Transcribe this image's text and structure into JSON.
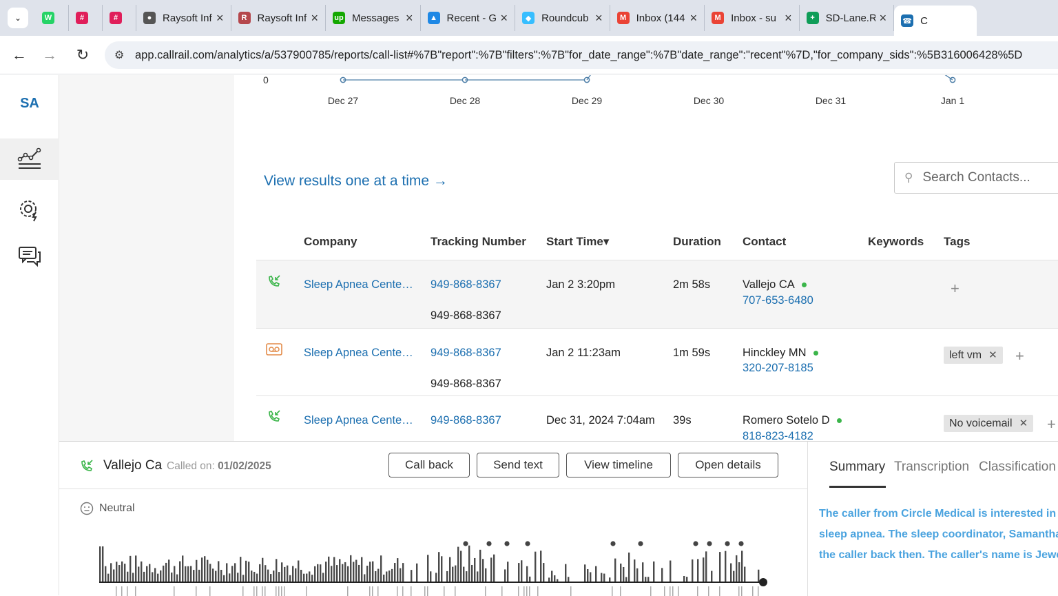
{
  "browser": {
    "tabs": [
      {
        "label": "",
        "icon": "whatsapp-icon",
        "color": "#25d366"
      },
      {
        "label": "",
        "icon": "slack-icon",
        "color": "#e01e5a"
      },
      {
        "label": "",
        "icon": "slack-icon",
        "color": "#e01e5a"
      },
      {
        "label": "Raysoft Inf",
        "icon": "globe-icon",
        "color": "#555555"
      },
      {
        "label": "Raysoft Inf",
        "icon": "raysoft-icon",
        "color": "#b5474c"
      },
      {
        "label": "Messages",
        "icon": "upwork-icon",
        "color": "#14a800"
      },
      {
        "label": "Recent - G",
        "icon": "drive-icon",
        "color": "#1e88e5"
      },
      {
        "label": "Roundcub",
        "icon": "roundcube-icon",
        "color": "#37beff"
      },
      {
        "label": "Inbox (144",
        "icon": "gmail-icon",
        "color": "#ea4335"
      },
      {
        "label": "Inbox - su",
        "icon": "gmail-icon",
        "color": "#ea4335"
      },
      {
        "label": "SD-Lane.R",
        "icon": "sheets-icon",
        "color": "#0f9d58"
      },
      {
        "label": "C",
        "icon": "callrail-icon",
        "color": "#1c6fb0"
      }
    ],
    "url": "app.callrail.com/analytics/a/537900785/reports/call-list#%7B\"report\":%7B\"filters\":%7B\"for_date_range\":%7B\"date_range\":\"recent\"%7D,\"for_company_sids\":%5B316006428%5D"
  },
  "sidebar": {
    "logo": "SA"
  },
  "chart_data": {
    "type": "line",
    "y_tick": "0",
    "categories": [
      "Dec 27",
      "Dec 28",
      "Dec 29",
      "Dec 30",
      "Dec 31",
      "Jan 1"
    ],
    "values": [
      0,
      0,
      0,
      null,
      null,
      0
    ]
  },
  "main": {
    "view_results": "View results one at a time →",
    "search_placeholder": "Search Contacts..."
  },
  "table": {
    "headers": {
      "company": "Company",
      "tracking": "Tracking Number",
      "start": "Start Time▾",
      "duration": "Duration",
      "contact": "Contact",
      "keywords": "Keywords",
      "tags": "Tags"
    },
    "rows": [
      {
        "icon": "inbound-call-icon",
        "company": "Sleep Apnea Cente…",
        "tracking": "949-868-8367",
        "tracking2": "949-868-8367",
        "start": "Jan 2 3:20pm",
        "duration": "2m 58s",
        "contact": "Vallejo CA",
        "phone": "707-653-6480",
        "tag": ""
      },
      {
        "icon": "voicemail-icon",
        "company": "Sleep Apnea Cente…",
        "tracking": "949-868-8367",
        "tracking2": "949-868-8367",
        "start": "Jan 2 11:23am",
        "duration": "1m 59s",
        "contact": "Hinckley MN",
        "phone": "320-207-8185",
        "tag": "left vm"
      },
      {
        "icon": "inbound-call-icon",
        "company": "Sleep Apnea Cente…",
        "tracking": "949-868-8367",
        "tracking2": "",
        "start": "Dec 31, 2024 7:04am",
        "duration": "39s",
        "contact": "Romero Sotelo D",
        "phone": "818-823-4182",
        "tag": "No voicemail"
      }
    ]
  },
  "panel": {
    "caller": "Vallejo Ca",
    "called_on_label": "Called on:",
    "called_on_date": "01/02/2025",
    "buttons": {
      "call_back": "Call back",
      "send_text": "Send text",
      "view_timeline": "View timeline",
      "open_details": "Open details"
    },
    "sentiment": "Neutral",
    "tabs": {
      "summary": "Summary",
      "transcription": "Transcription",
      "classification": "Classification"
    },
    "summary_lines": [
      "The caller from Circle Medical is interested in re",
      "sleep apnea. The sleep coordinator, Samantha,",
      "the caller back then. The caller's name is Jewel"
    ]
  }
}
